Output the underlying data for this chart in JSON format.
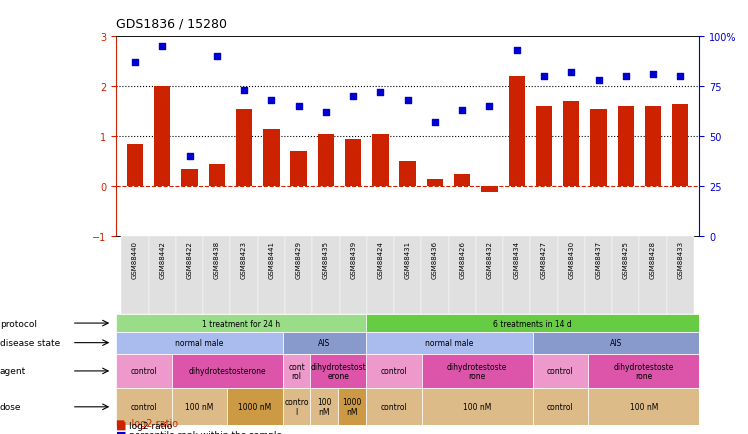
{
  "title": "GDS1836 / 15280",
  "samples": [
    "GSM88440",
    "GSM88442",
    "GSM88422",
    "GSM88438",
    "GSM88423",
    "GSM88441",
    "GSM88429",
    "GSM88435",
    "GSM88439",
    "GSM88424",
    "GSM88431",
    "GSM88436",
    "GSM88426",
    "GSM88432",
    "GSM88434",
    "GSM88427",
    "GSM88430",
    "GSM88437",
    "GSM88425",
    "GSM88428",
    "GSM88433"
  ],
  "log2_ratio": [
    0.85,
    2.0,
    0.35,
    0.45,
    1.55,
    1.15,
    0.7,
    1.05,
    0.95,
    1.05,
    0.5,
    0.15,
    0.25,
    -0.12,
    2.2,
    1.6,
    1.7,
    1.55,
    1.6,
    1.6,
    1.65
  ],
  "percentile": [
    87,
    95,
    40,
    90,
    73,
    68,
    65,
    62,
    70,
    72,
    68,
    57,
    63,
    65,
    93,
    80,
    82,
    78,
    80,
    81,
    80
  ],
  "bar_color": "#cc2200",
  "dot_color": "#0000cc",
  "protocol_labels_spans": [
    [
      "1 treatment for 24 h",
      0,
      9,
      "#99dd88"
    ],
    [
      "6 treatments in 14 d",
      9,
      21,
      "#66cc44"
    ]
  ],
  "disease_state_labels_spans": [
    [
      "normal male",
      0,
      6,
      "#aabbee"
    ],
    [
      "AIS",
      6,
      9,
      "#8899cc"
    ],
    [
      "normal male",
      9,
      15,
      "#aabbee"
    ],
    [
      "AIS",
      15,
      21,
      "#8899cc"
    ]
  ],
  "agent_labels_spans": [
    [
      "control",
      0,
      2,
      "#ee99cc"
    ],
    [
      "dihydrotestosterone",
      2,
      6,
      "#dd55aa"
    ],
    [
      "cont\nrol",
      6,
      7,
      "#ee99cc"
    ],
    [
      "dihydrotestost\nerone",
      7,
      9,
      "#dd55aa"
    ],
    [
      "control",
      9,
      11,
      "#ee99cc"
    ],
    [
      "dihydrotestoste\nrone",
      11,
      15,
      "#dd55aa"
    ],
    [
      "control",
      15,
      17,
      "#ee99cc"
    ],
    [
      "dihydrotestoste\nrone",
      17,
      21,
      "#dd55aa"
    ]
  ],
  "dose_labels_spans": [
    [
      "control",
      0,
      2,
      "#ddbb88"
    ],
    [
      "100 nM",
      2,
      4,
      "#ddbb88"
    ],
    [
      "1000 nM",
      4,
      6,
      "#cc9944"
    ],
    [
      "contro\nl",
      6,
      7,
      "#ddbb88"
    ],
    [
      "100\nnM",
      7,
      8,
      "#ddbb88"
    ],
    [
      "1000\nnM",
      8,
      9,
      "#cc9944"
    ],
    [
      "control",
      9,
      11,
      "#ddbb88"
    ],
    [
      "100 nM",
      11,
      15,
      "#ddbb88"
    ],
    [
      "control",
      15,
      17,
      "#ddbb88"
    ],
    [
      "100 nM",
      17,
      21,
      "#ddbb88"
    ]
  ],
  "row_labels": [
    "protocol",
    "disease state",
    "agent",
    "dose"
  ],
  "ylim_left": [
    -1,
    3
  ],
  "ylim_right": [
    0,
    100
  ],
  "yticks_left": [
    -1,
    0,
    1,
    2,
    3
  ],
  "yticks_right": [
    0,
    25,
    50,
    75,
    100
  ],
  "ytick_labels_right": [
    "0",
    "25",
    "50",
    "75",
    "100%"
  ],
  "hlines": [
    0,
    1,
    2
  ],
  "hline_styles": [
    "--",
    ":",
    ":"
  ],
  "hline_colors": [
    "#cc2200",
    "black",
    "black"
  ]
}
